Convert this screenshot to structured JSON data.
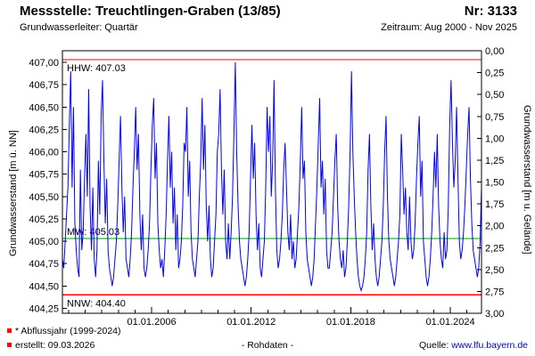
{
  "header": {
    "title": "Messstelle: Treuchtlingen-Graben (13/85)",
    "number": "Nr: 3133",
    "aquifer": "Grundwasserleiter: Quartär",
    "period": "Zeitraum: Aug 2000 - Nov 2025"
  },
  "axis_labels": {
    "left": "Grundwasserstand [m ü. NN]",
    "right": "Grundwasserstand [m u. Gelände]"
  },
  "footer": {
    "note": "* Abflussjahr (1999-2024)",
    "created": "erstellt: 09.03.2026",
    "center": "- Rohdaten -",
    "source_label": "Quelle:",
    "source_link": "www.lfu.bayern.de"
  },
  "chart_data": {
    "type": "line",
    "title": "Messstelle: Treuchtlingen-Graben (13/85)",
    "x_start": 2000.625,
    "x_end": 2025.875,
    "x_ticks": [
      {
        "t": 2006.0,
        "label": "01.01.2006"
      },
      {
        "t": 2012.0,
        "label": "01.01.2012"
      },
      {
        "t": 2018.0,
        "label": "01.01.2018"
      },
      {
        "t": 2024.0,
        "label": "01.01.2024"
      }
    ],
    "left_axis": {
      "min": 404.195,
      "max": 407.13,
      "ticks": [
        {
          "v": 404.25,
          "label": "404,25"
        },
        {
          "v": 404.5,
          "label": "404,50"
        },
        {
          "v": 404.75,
          "label": "404,75"
        },
        {
          "v": 405.0,
          "label": "405,00"
        },
        {
          "v": 405.25,
          "label": "405,25"
        },
        {
          "v": 405.5,
          "label": "405,50"
        },
        {
          "v": 405.75,
          "label": "405,75"
        },
        {
          "v": 406.0,
          "label": "406,00"
        },
        {
          "v": 406.25,
          "label": "406,25"
        },
        {
          "v": 406.5,
          "label": "406,50"
        },
        {
          "v": 406.75,
          "label": "406,75"
        },
        {
          "v": 407.0,
          "label": "407,00"
        }
      ]
    },
    "right_axis": {
      "labels": [
        "0,00",
        "0,25",
        "0,50",
        "0,75",
        "1,00",
        "1,25",
        "1,50",
        "1,75",
        "2,00",
        "2,25",
        "2,50",
        "2,75",
        "3,00"
      ]
    },
    "ref_lines": [
      {
        "name": "HHW",
        "label": "HHW: 407.03",
        "value": 407.03,
        "color": "#ff0000",
        "label_pos": "below"
      },
      {
        "name": "MW",
        "label": "MW: 405.03",
        "value": 405.03,
        "color": "#009900",
        "label_pos": "above"
      },
      {
        "name": "NNW",
        "label": "NNW: 404.40",
        "value": 404.4,
        "color": "#ff0000",
        "label_pos": "below"
      }
    ],
    "series": {
      "name": "Rohdaten",
      "color": "#0000ff",
      "values": [
        404.8,
        404.7,
        405.0,
        405.3,
        405.6,
        406.3,
        406.9,
        405.6,
        406.5,
        405.2,
        404.9,
        404.7,
        404.6,
        405.8,
        404.9,
        405.1,
        405.7,
        406.2,
        405.5,
        406.7,
        405.4,
        404.9,
        405.6,
        404.8,
        404.6,
        404.9,
        405.9,
        405.3,
        406.4,
        406.8,
        405.9,
        405.2,
        405.7,
        404.9,
        404.7,
        404.6,
        404.5,
        404.6,
        404.8,
        405.0,
        405.4,
        405.9,
        406.4,
        405.6,
        405.1,
        405.5,
        404.8,
        404.7,
        404.6,
        404.8,
        405.1,
        405.6,
        406.0,
        406.5,
        405.8,
        406.2,
        405.3,
        404.9,
        405.3,
        404.7,
        404.6,
        404.7,
        404.9,
        405.2,
        405.8,
        406.3,
        406.6,
        405.7,
        406.1,
        405.2,
        404.9,
        404.7,
        404.8,
        404.6,
        404.9,
        405.3,
        405.9,
        406.4,
        405.6,
        406.0,
        405.2,
        405.6,
        404.9,
        405.3,
        404.7,
        404.8,
        405.0,
        405.4,
        406.1,
        406.0,
        406.5,
        405.5,
        405.9,
        405.1,
        404.8,
        404.7,
        404.6,
        404.8,
        405.0,
        405.5,
        405.9,
        406.6,
        405.8,
        406.3,
        405.4,
        405.0,
        405.4,
        404.8,
        404.6,
        404.7,
        405.0,
        405.3,
        406.0,
        406.2,
        406.7,
        405.8,
        405.3,
        405.8,
        405.0,
        404.8,
        405.2,
        404.8,
        405.1,
        405.5,
        406.2,
        407.0,
        406.0,
        405.4,
        405.0,
        404.8,
        404.7,
        404.6,
        404.5,
        404.6,
        404.8,
        405.1,
        405.7,
        406.3,
        405.7,
        406.1,
        405.3,
        404.9,
        405.2,
        404.7,
        404.6,
        404.8,
        405.0,
        405.6,
        406.5,
        406.0,
        406.4,
        405.5,
        405.9,
        406.8,
        405.6,
        404.9,
        404.7,
        404.8,
        405.0,
        405.3,
        405.8,
        406.1,
        405.6,
        405.1,
        404.9,
        405.3,
        404.8,
        405.0,
        404.7,
        404.8,
        405.1,
        405.4,
        405.9,
        406.5,
        405.7,
        405.9,
        405.1,
        404.8,
        404.7,
        404.6,
        404.5,
        404.6,
        404.8,
        405.2,
        405.6,
        406.1,
        406.6,
        405.6,
        405.9,
        405.3,
        405.7,
        404.9,
        404.7,
        404.7,
        404.9,
        405.1,
        405.5,
        405.9,
        406.2,
        405.4,
        405.0,
        404.8,
        404.7,
        404.9,
        404.6,
        404.7,
        405.0,
        405.4,
        406.0,
        406.9,
        406.0,
        405.5,
        405.1,
        404.8,
        404.6,
        404.5,
        404.45,
        404.5,
        404.6,
        404.8,
        405.1,
        405.8,
        406.2,
        405.4,
        404.9,
        405.2,
        404.8,
        404.6,
        404.5,
        404.6,
        404.8,
        405.0,
        405.4,
        406.0,
        406.4,
        405.5,
        405.0,
        404.8,
        404.7,
        404.6,
        404.5,
        404.6,
        404.8,
        405.0,
        405.3,
        406.2,
        405.8,
        405.3,
        405.6,
        405.1,
        404.9,
        405.5,
        405.0,
        404.8,
        404.9,
        405.2,
        405.7,
        406.1,
        406.4,
        405.5,
        405.9,
        405.0,
        404.8,
        404.6,
        404.5,
        404.6,
        404.8,
        405.1,
        405.5,
        406.0,
        405.6,
        406.2,
        405.4,
        405.0,
        404.8,
        404.7,
        405.1,
        404.8,
        404.9,
        405.4,
        406.3,
        406.8,
        406.1,
        405.6,
        405.9,
        406.5,
        405.7,
        405.0,
        404.8,
        404.9,
        405.1,
        405.4,
        405.8,
        406.2,
        406.5,
        405.7,
        405.2,
        404.9,
        404.8,
        404.7,
        404.6,
        404.7,
        405.0,
        405.6
      ]
    }
  }
}
